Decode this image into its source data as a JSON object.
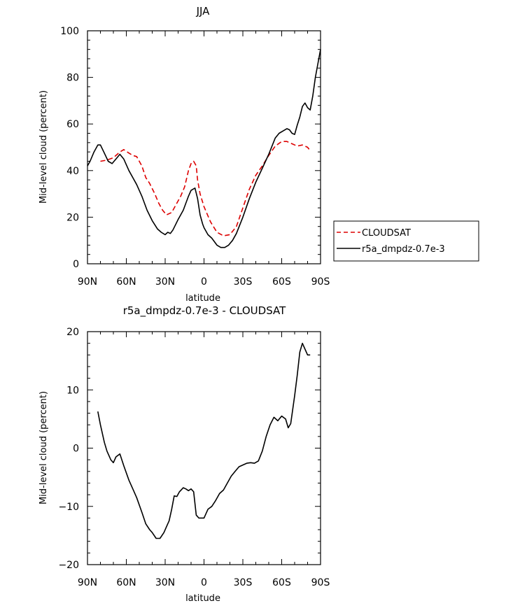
{
  "colors": {
    "cloudsat": "#dd0000",
    "model": "#000000",
    "axis": "#000000"
  },
  "chart_data": [
    {
      "type": "line",
      "title": "JJA",
      "xlabel": "latitude",
      "ylabel": "Mid-level cloud (percent)",
      "xlim": [
        -90,
        90
      ],
      "ylim": [
        0,
        100
      ],
      "xticks": [
        -90,
        -60,
        -30,
        0,
        30,
        60,
        90
      ],
      "xticklabels": [
        "90N",
        "60N",
        "30N",
        "0",
        "30S",
        "60S",
        "90S"
      ],
      "yticks": [
        0,
        20,
        40,
        60,
        80,
        100
      ],
      "yticklabels": [
        "0",
        "20",
        "40",
        "60",
        "80",
        "100"
      ],
      "legend": {
        "placement": "right",
        "entries": [
          "CLOUDSAT",
          "r5a_dmpdz-0.7e-3"
        ]
      },
      "series": [
        {
          "name": "CLOUDSAT",
          "style": "dashed",
          "color": "#dd0000",
          "x": [
            -80,
            -75,
            -70,
            -65,
            -62,
            -58,
            -55,
            -52,
            -48,
            -45,
            -42,
            -38,
            -35,
            -32,
            -29,
            -25,
            -22,
            -18,
            -15,
            -12,
            -10,
            -8,
            -6,
            -5,
            -3,
            0,
            5,
            10,
            15,
            20,
            25,
            30,
            35,
            40,
            45,
            50,
            55,
            60,
            64,
            68,
            72,
            76,
            80,
            82
          ],
          "y": [
            44,
            44.5,
            45.5,
            48,
            49,
            47.5,
            46.5,
            46,
            42,
            37,
            34.5,
            30,
            26,
            23,
            21,
            22,
            25,
            29,
            33,
            40,
            43,
            44,
            42,
            36,
            30,
            24.5,
            18,
            13.5,
            12,
            12.5,
            16,
            24,
            32,
            38,
            42,
            46.5,
            50.5,
            52.5,
            52.5,
            51.5,
            50.5,
            51,
            50,
            48.5
          ]
        },
        {
          "name": "r5a_dmpdz-0.7e-3",
          "style": "solid",
          "color": "#000000",
          "x": [
            -90,
            -88,
            -85,
            -82,
            -80,
            -77,
            -74,
            -71,
            -68,
            -65,
            -62,
            -58,
            -52,
            -48,
            -44,
            -40,
            -36,
            -33,
            -30,
            -28,
            -26,
            -24,
            -20,
            -16,
            -12,
            -10,
            -7,
            -5,
            -3,
            -1,
            0,
            3,
            6,
            10,
            13,
            16,
            19,
            22,
            25,
            30,
            35,
            40,
            45,
            50,
            55,
            58,
            61,
            64,
            66,
            68,
            70,
            72,
            74,
            76,
            78,
            80,
            82,
            84,
            86,
            88,
            90
          ],
          "y": [
            42,
            44,
            48,
            51,
            51,
            47.5,
            44,
            43,
            45,
            47,
            45,
            40,
            34,
            29,
            23,
            18.5,
            15,
            13.5,
            12.5,
            13.5,
            13,
            14.5,
            19,
            23,
            29,
            31.5,
            32.5,
            28,
            21,
            17,
            15.5,
            12.5,
            11,
            8,
            7,
            7,
            8,
            10,
            13,
            20,
            28,
            35,
            41,
            47,
            54,
            56,
            57,
            58,
            57.5,
            56,
            55.5,
            59.5,
            63,
            67.5,
            69,
            67,
            66,
            72,
            80,
            86,
            92
          ]
        }
      ]
    },
    {
      "type": "line",
      "title": "r5a_dmpdz-0.7e-3 - CLOUDSAT",
      "xlabel": "latitude",
      "ylabel": "Mid-level cloud (percent)",
      "xlim": [
        -90,
        90
      ],
      "ylim": [
        -20,
        20
      ],
      "xticks": [
        -90,
        -60,
        -30,
        0,
        30,
        60,
        90
      ],
      "xticklabels": [
        "90N",
        "60N",
        "30N",
        "0",
        "30S",
        "60S",
        "90S"
      ],
      "yticks": [
        -20,
        -10,
        0,
        10,
        20
      ],
      "yticklabels": [
        "−20",
        "−10",
        "0",
        "10",
        "20"
      ],
      "series": [
        {
          "name": "r5a_dmpdz-0.7e-3 - CLOUDSAT",
          "style": "solid",
          "color": "#000000",
          "x": [
            -82,
            -80,
            -77,
            -75,
            -72,
            -70,
            -68,
            -65,
            -62,
            -58,
            -55,
            -52,
            -48,
            -45,
            -42,
            -40,
            -37,
            -34,
            -31,
            -28,
            -27,
            -25,
            -23,
            -21,
            -19,
            -16,
            -14,
            -12,
            -10,
            -8,
            -6,
            -4,
            -2,
            0,
            3,
            6,
            9,
            12,
            15,
            18,
            21,
            24,
            27,
            30,
            33,
            36,
            39,
            42,
            45,
            48,
            51,
            54,
            57,
            60,
            63,
            65,
            67,
            70,
            72,
            74,
            76,
            78,
            80,
            82
          ],
          "y": [
            6.3,
            4,
            1,
            -0.5,
            -2,
            -2.5,
            -1.5,
            -1,
            -3,
            -5.5,
            -7,
            -8.5,
            -11,
            -13,
            -14,
            -14.5,
            -15.5,
            -15.5,
            -14.5,
            -13,
            -12.5,
            -10.5,
            -8.2,
            -8.3,
            -7.5,
            -6.8,
            -7,
            -7.3,
            -7,
            -7.5,
            -11.5,
            -12,
            -12,
            -12,
            -10.5,
            -10,
            -9,
            -7.8,
            -7.2,
            -6,
            -4.8,
            -4,
            -3.2,
            -2.9,
            -2.6,
            -2.5,
            -2.6,
            -2.2,
            -0.5,
            2,
            4,
            5.3,
            4.7,
            5.5,
            5,
            3.5,
            4.2,
            9,
            12.5,
            16.5,
            18,
            17,
            16,
            16
          ]
        }
      ]
    }
  ]
}
